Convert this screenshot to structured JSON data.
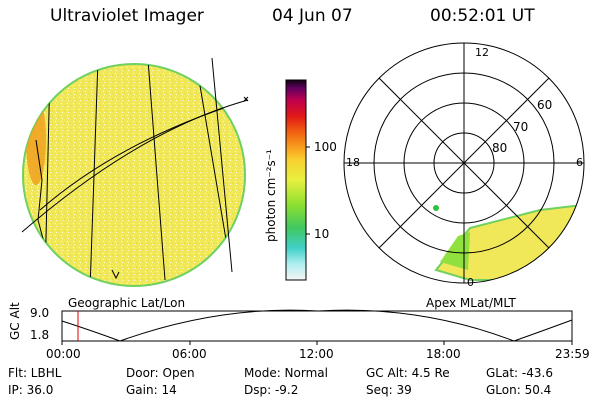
{
  "header": {
    "title": "Ultraviolet Imager",
    "date": "04 Jun 07",
    "time": "00:52:01 UT"
  },
  "colorbar": {
    "unit_label": "photon cm⁻²s⁻¹",
    "tick_100": "100",
    "tick_10": "10",
    "stops": [
      "#f0f0f0",
      "#80e0e0",
      "#40c8a0",
      "#60d040",
      "#c0e040",
      "#f0e040",
      "#f8a020",
      "#f06010",
      "#e01010",
      "#c00050",
      "#600060",
      "#100010"
    ]
  },
  "left_panel": {
    "caption": "Geographic Lat/Lon",
    "disk_color": "#f0e040"
  },
  "right_panel": {
    "caption": "Apex  MLat/MLT",
    "mlt_12": "12",
    "mlt_18": "18",
    "mlt_6": "6",
    "mlt_0": "0",
    "lat_60": "60",
    "lat_70": "70",
    "lat_80": "80"
  },
  "altitude_plot": {
    "ylabel": "GC Alt",
    "y_top": "9.0",
    "y_bottom": "1.8",
    "x_ticks": [
      "00:00",
      "06:00",
      "12:00",
      "18:00",
      "23:59"
    ],
    "marker_color": "#e00000"
  },
  "status": {
    "filt": "Flt: LBHL",
    "ip": "IP: 36.0",
    "door": "Door: Open",
    "gain": "Gain: 14",
    "mode": "Mode: Normal",
    "dsp": "Dsp:     -9.2",
    "gc_alt": "GC Alt: 4.5 Re",
    "seq": "Seq: 39",
    "glat": "GLat: -43.6",
    "glon": "GLon:  50.4"
  }
}
